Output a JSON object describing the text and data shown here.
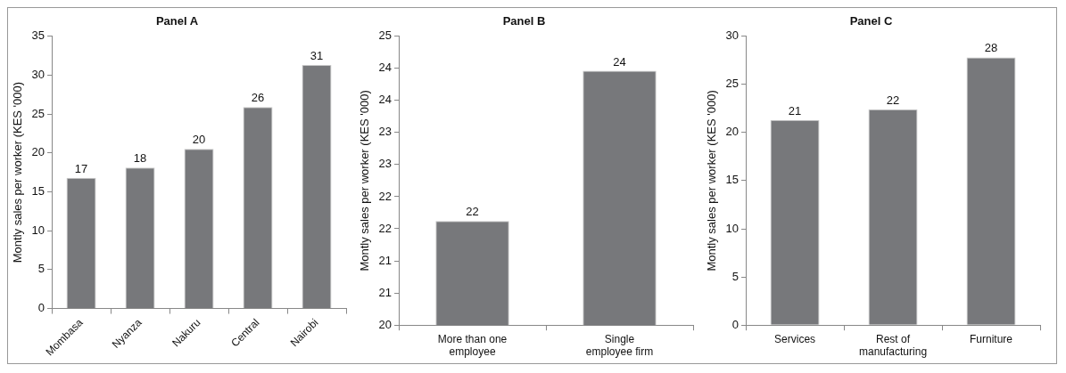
{
  "chart_data": [
    {
      "type": "bar",
      "title": "Panel A",
      "ylabel": "Montly sales per worker (KES '000)",
      "categories": [
        "Mombasa",
        "Nyanza",
        "Nakuru",
        "Central",
        "Nairobi"
      ],
      "values": [
        16.8,
        18.1,
        20.5,
        25.9,
        31.3
      ],
      "value_labels": [
        "17",
        "18",
        "20",
        "26",
        "31"
      ],
      "color": "#77787b",
      "ylim": [
        0,
        35
      ],
      "yticks": [
        0,
        5,
        10,
        15,
        20,
        25,
        30,
        35
      ],
      "grid": false,
      "legend": false
    },
    {
      "type": "bar",
      "title": "Panel B",
      "ylabel": "Montly sales per worker (KES '000)",
      "categories": [
        "More than one employee",
        "Single employee firm"
      ],
      "values": [
        21.8,
        24.4
      ],
      "value_labels": [
        "22",
        "24"
      ],
      "color": "#77787b",
      "ylim": [
        20,
        25
      ],
      "yticks": [
        20,
        {
          "value": 20.556,
          "label": "21"
        },
        {
          "value": 21.111,
          "label": "21"
        },
        {
          "value": 21.667,
          "label": "22"
        },
        {
          "value": 22.222,
          "label": "22"
        },
        {
          "value": 22.778,
          "label": "23"
        },
        {
          "value": 23.333,
          "label": "23"
        },
        {
          "value": 23.889,
          "label": "24"
        },
        {
          "value": 24.444,
          "label": "24"
        },
        25
      ],
      "grid": false,
      "legend": false
    },
    {
      "type": "bar",
      "title": "Panel C",
      "ylabel": "Montly sales per worker (KES '000)",
      "categories": [
        "Services",
        "Rest of manufacturing",
        "Furniture"
      ],
      "values": [
        21.3,
        22.4,
        27.8
      ],
      "value_labels": [
        "21",
        "22",
        "28"
      ],
      "color": "#77787b",
      "ylim": [
        0,
        30
      ],
      "yticks": [
        0,
        5,
        10,
        15,
        20,
        25,
        30
      ],
      "grid": false,
      "legend": false
    }
  ]
}
